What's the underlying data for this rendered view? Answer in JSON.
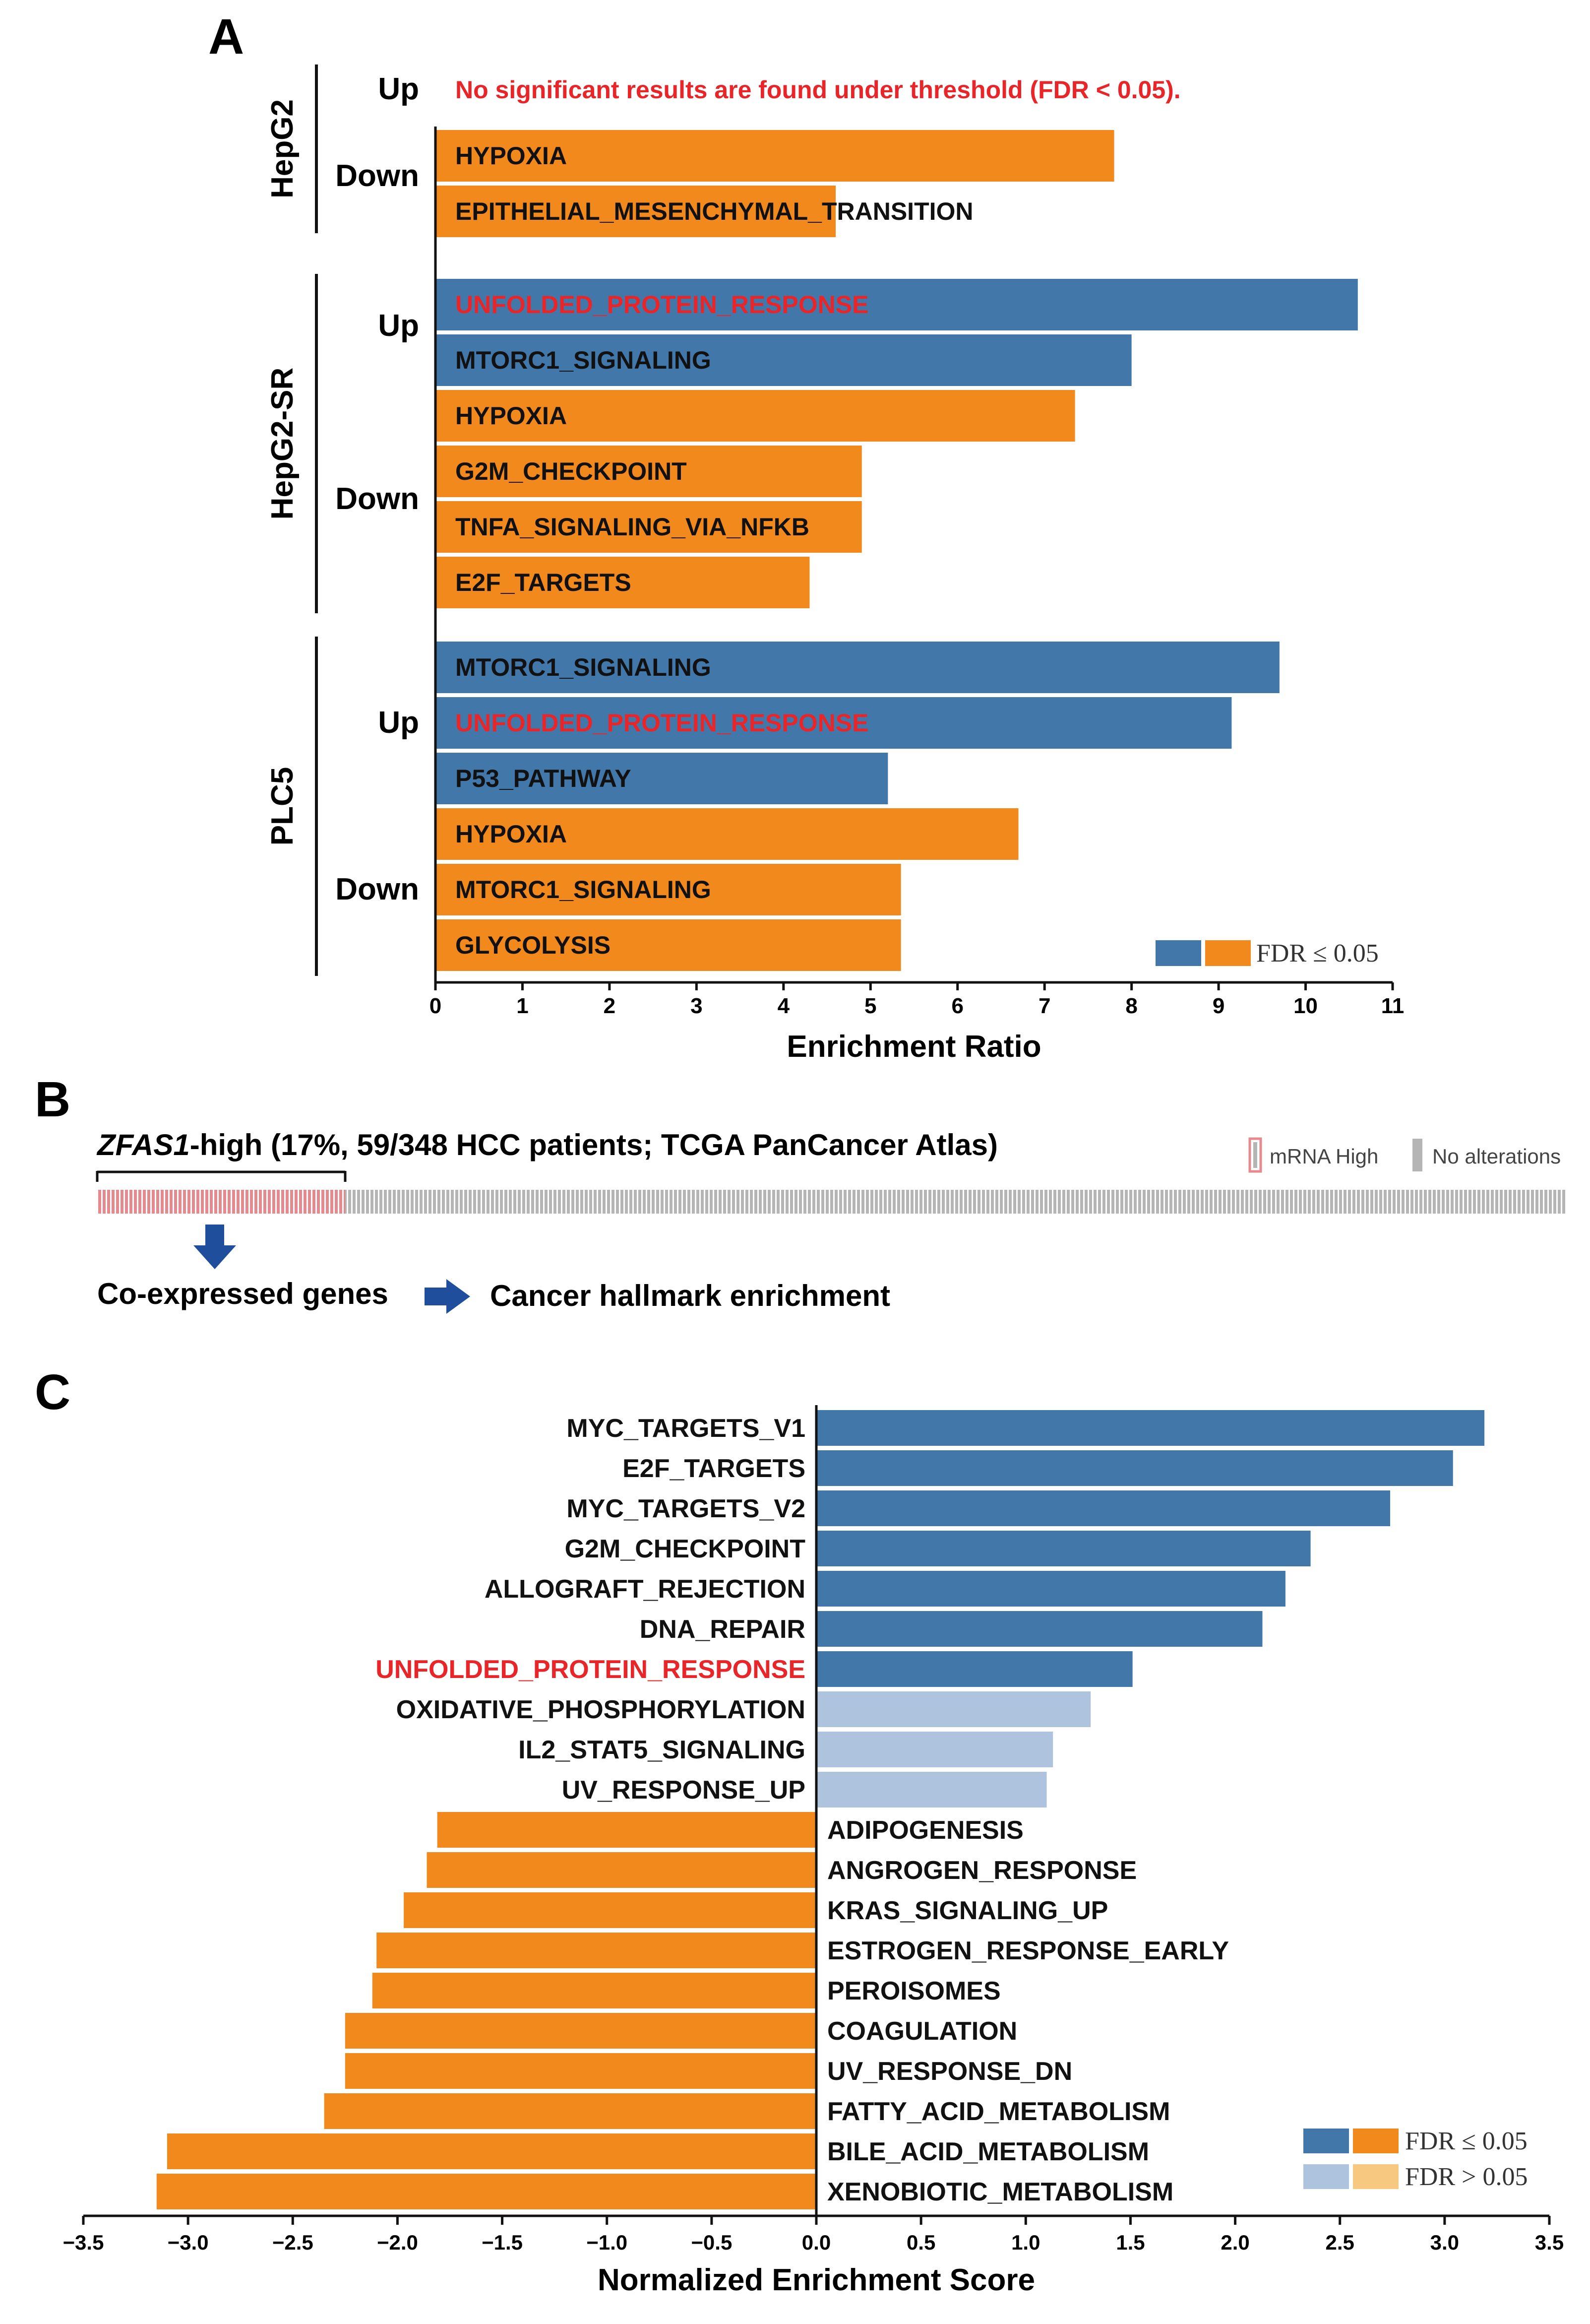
{
  "panel_labels": {
    "a": "A",
    "b": "B",
    "c": "C"
  },
  "colors": {
    "up": "#4277aa",
    "down": "#f2891c",
    "up_light": "#adc3de",
    "down_light": "#f7c980",
    "highlight_text": "#e8262a",
    "mrna_high": "#e58a8f",
    "no_alt": "#b5b5b5"
  },
  "panelA": {
    "no_result_text": "No significant results are found under threshold (FDR < 0.05).",
    "legend_label": "FDR ≤ 0.05"
  },
  "panelB": {
    "title_gene": "ZFAS1",
    "title_rest": "-high (17%, 59/348 HCC patients; TCGA PanCancer Atlas)",
    "legend_mrna": "mRNA High",
    "legend_noalt": "No alterations",
    "coexp": "Co-expressed genes",
    "enrich": "Cancer hallmark enrichment",
    "high_count": 59,
    "total": 348
  },
  "panelC": {
    "legend_sig": "FDR ≤ 0.05",
    "legend_nonsig": "FDR > 0.05"
  },
  "chart_data": [
    {
      "type": "bar",
      "orientation": "horizontal",
      "xlabel": "Enrichment Ratio",
      "xlim": [
        0,
        11
      ],
      "xticks": [
        0,
        1,
        2,
        3,
        4,
        5,
        6,
        7,
        8,
        9,
        10,
        11
      ],
      "groups": [
        {
          "cell_line": "HepG2",
          "up_label": "Up",
          "down_label": "Down",
          "bars": [
            {
              "term": "HYPOXIA",
              "direction": "down",
              "value": 7.8
            },
            {
              "term": "EPITHELIAL_MESENCHYMAL_TRANSITION",
              "direction": "down",
              "value": 4.6
            }
          ]
        },
        {
          "cell_line": "HepG2-SR",
          "up_label": "Up",
          "down_label": "Down",
          "bars": [
            {
              "term": "UNFOLDED_PROTEIN_RESPONSE",
              "direction": "up",
              "value": 10.6,
              "highlight": true
            },
            {
              "term": "MTORC1_SIGNALING",
              "direction": "up",
              "value": 8.0
            },
            {
              "term": "HYPOXIA",
              "direction": "down",
              "value": 7.35
            },
            {
              "term": "G2M_CHECKPOINT",
              "direction": "down",
              "value": 4.9
            },
            {
              "term": "TNFA_SIGNALING_VIA_NFKB",
              "direction": "down",
              "value": 4.9
            },
            {
              "term": "E2F_TARGETS",
              "direction": "down",
              "value": 4.3
            }
          ]
        },
        {
          "cell_line": "PLC5",
          "up_label": "Up",
          "down_label": "Down",
          "bars": [
            {
              "term": "MTORC1_SIGNALING",
              "direction": "up",
              "value": 9.7
            },
            {
              "term": "UNFOLDED_PROTEIN_RESPONSE",
              "direction": "up",
              "value": 9.15,
              "highlight": true
            },
            {
              "term": "P53_PATHWAY",
              "direction": "up",
              "value": 5.2
            },
            {
              "term": "HYPOXIA",
              "direction": "down",
              "value": 6.7
            },
            {
              "term": "MTORC1_SIGNALING",
              "direction": "down",
              "value": 5.35
            },
            {
              "term": "GLYCOLYSIS",
              "direction": "down",
              "value": 5.35
            }
          ]
        }
      ]
    },
    {
      "type": "bar",
      "orientation": "horizontal",
      "xlabel": "Normalized Enrichment Score",
      "xlim": [
        -3.5,
        3.5
      ],
      "xticks": [
        -3.5,
        -3.0,
        -2.5,
        -2.0,
        -1.5,
        -1.0,
        -0.5,
        0.0,
        0.5,
        1.0,
        1.5,
        2.0,
        2.5,
        3.0,
        3.5
      ],
      "xtick_labels": [
        "−3.5",
        "−3.0",
        "−2.5",
        "−2.0",
        "−1.5",
        "−1.0",
        "−0.5",
        "0.0",
        "0.5",
        "1.0",
        "1.5",
        "2.0",
        "2.5",
        "3.0",
        "3.5"
      ],
      "bars": [
        {
          "term": "MYC_TARGETS_V1",
          "value": 3.19,
          "significant": true
        },
        {
          "term": "E2F_TARGETS",
          "value": 3.04,
          "significant": true
        },
        {
          "term": "MYC_TARGETS_V2",
          "value": 2.74,
          "significant": true
        },
        {
          "term": "G2M_CHECKPOINT",
          "value": 2.36,
          "significant": true
        },
        {
          "term": "ALLOGRAFT_REJECTION",
          "value": 2.24,
          "significant": true
        },
        {
          "term": "DNA_REPAIR",
          "value": 2.13,
          "significant": true
        },
        {
          "term": "UNFOLDED_PROTEIN_RESPONSE",
          "value": 1.51,
          "significant": true,
          "highlight": true
        },
        {
          "term": "OXIDATIVE_PHOSPHORYLATION",
          "value": 1.31,
          "significant": false
        },
        {
          "term": "IL2_STAT5_SIGNALING",
          "value": 1.13,
          "significant": false
        },
        {
          "term": "UV_RESPONSE_UP",
          "value": 1.1,
          "significant": false
        },
        {
          "term": "ADIPOGENESIS",
          "value": -1.81,
          "significant": true
        },
        {
          "term": "ANGROGEN_RESPONSE",
          "value": -1.86,
          "significant": true
        },
        {
          "term": "KRAS_SIGNALING_UP",
          "value": -1.97,
          "significant": true
        },
        {
          "term": "ESTROGEN_RESPONSE_EARLY",
          "value": -2.1,
          "significant": true
        },
        {
          "term": "PEROISOMES",
          "value": -2.12,
          "significant": true
        },
        {
          "term": "COAGULATION",
          "value": -2.25,
          "significant": true
        },
        {
          "term": "UV_RESPONSE_DN",
          "value": -2.25,
          "significant": true
        },
        {
          "term": "FATTY_ACID_METABOLISM",
          "value": -2.35,
          "significant": true
        },
        {
          "term": "BILE_ACID_METABOLISM",
          "value": -3.1,
          "significant": true
        },
        {
          "term": "XENOBIOTIC_METABOLISM",
          "value": -3.15,
          "significant": true
        }
      ]
    }
  ]
}
